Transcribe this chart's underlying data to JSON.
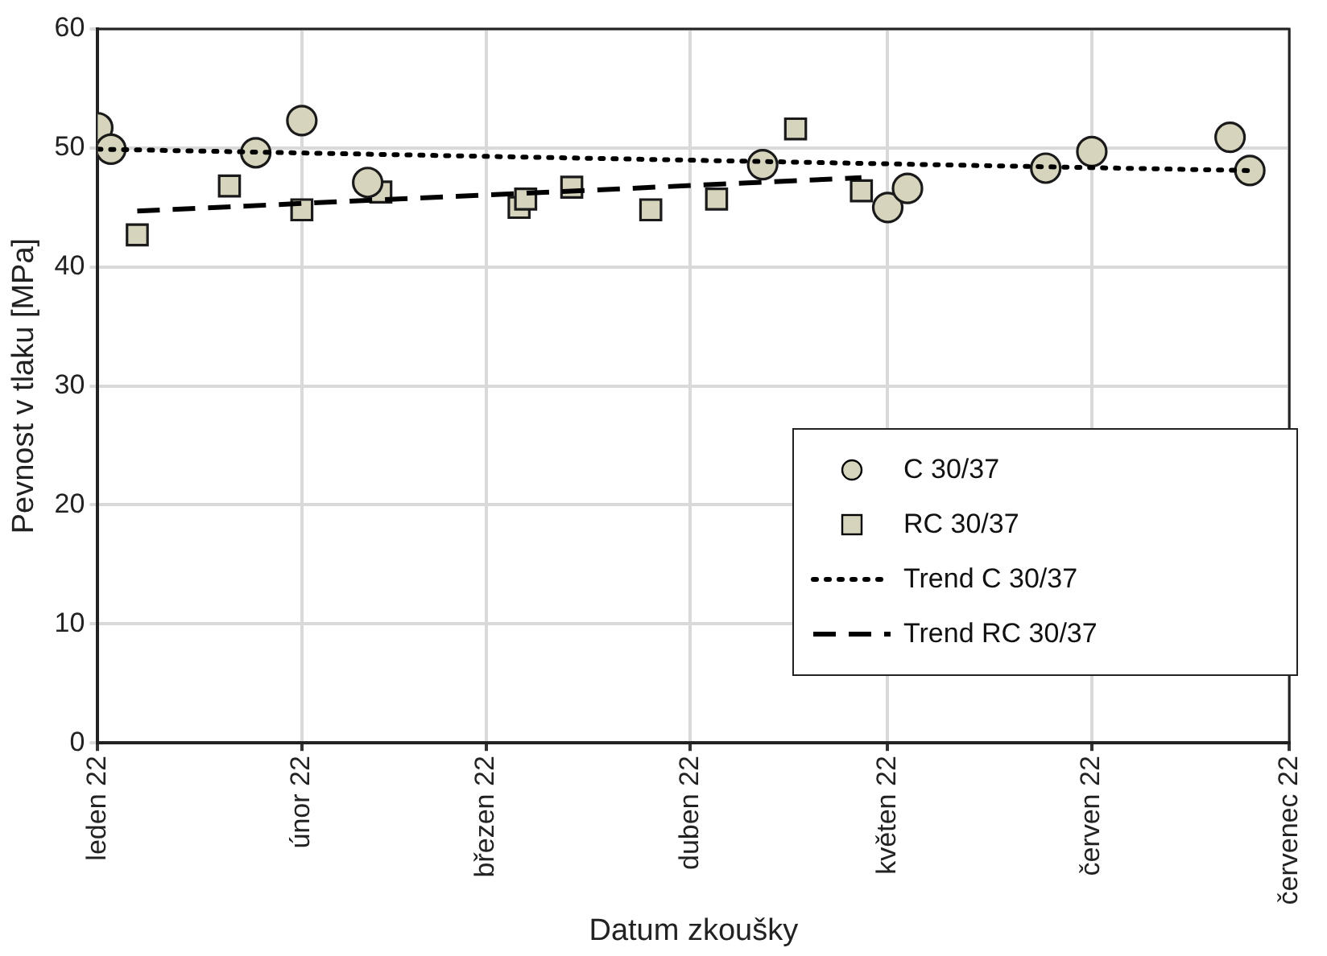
{
  "chart_data": {
    "type": "scatter",
    "xlabel": "Datum zkoušky",
    "ylabel": "Pevnost v tlaku [MPa]",
    "xlim": [
      "2022-01-01",
      "2022-07-01"
    ],
    "xticks": [
      {
        "value": "2022-01-01",
        "label": "leden 22"
      },
      {
        "value": "2022-02-01",
        "label": "únor 22"
      },
      {
        "value": "2022-03-01",
        "label": "březen 22"
      },
      {
        "value": "2022-04-01",
        "label": "duben 22"
      },
      {
        "value": "2022-05-01",
        "label": "květen 22"
      },
      {
        "value": "2022-06-01",
        "label": "červen 22"
      },
      {
        "value": "2022-07-01",
        "label": "červenec 22"
      }
    ],
    "ylim": [
      0,
      60
    ],
    "yticks": [
      0,
      10,
      20,
      30,
      40,
      50,
      60
    ],
    "grid": true,
    "legend": "bottom right",
    "series": [
      {
        "name": "C 30/37",
        "type": "scatter",
        "marker": "circle",
        "color": "#d6d4bc",
        "x": [
          "2022-01-01",
          "2022-01-03",
          "2022-01-25",
          "2022-02-01",
          "2022-02-11",
          "2022-04-12",
          "2022-05-01",
          "2022-05-04",
          "2022-05-25",
          "2022-06-01",
          "2022-06-22",
          "2022-06-25"
        ],
        "values": [
          51.7,
          49.9,
          49.6,
          52.3,
          47.1,
          48.6,
          45.0,
          46.6,
          48.3,
          49.7,
          50.9,
          48.1
        ]
      },
      {
        "name": "RC 30/37",
        "type": "scatter",
        "marker": "square",
        "color": "#d6d4bc",
        "x": [
          "2022-01-07",
          "2022-01-21",
          "2022-02-01",
          "2022-02-13",
          "2022-03-06",
          "2022-03-07",
          "2022-03-14",
          "2022-03-26",
          "2022-04-05",
          "2022-04-17",
          "2022-04-27"
        ],
        "values": [
          42.7,
          46.8,
          44.8,
          46.3,
          45.0,
          45.7,
          46.7,
          44.8,
          45.7,
          51.6,
          46.4
        ]
      },
      {
        "name": "Trend C 30/37",
        "type": "line",
        "marker": "none",
        "line_style": "dotted",
        "color": "#000000",
        "x": [
          "2022-01-01",
          "2022-06-25"
        ],
        "values": [
          49.9,
          48.1
        ]
      },
      {
        "name": "Trend RC 30/37",
        "type": "line",
        "marker": "none",
        "line_style": "dashed",
        "color": "#000000",
        "x": [
          "2022-01-07",
          "2022-04-27"
        ],
        "values": [
          44.7,
          47.5
        ]
      }
    ]
  }
}
